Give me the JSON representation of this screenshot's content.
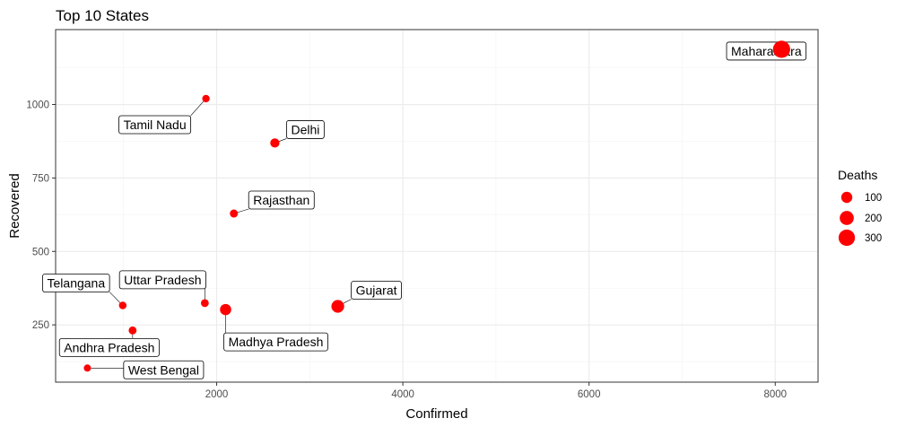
{
  "chart_data": {
    "type": "scatter",
    "title": "Top 10 States",
    "xlabel": "Confirmed",
    "ylabel": "Recovered",
    "xlim": [
      270,
      8460
    ],
    "ylim": [
      55,
      1255
    ],
    "x_ticks": [
      2000,
      4000,
      6000,
      8000
    ],
    "y_ticks": [
      250,
      500,
      750,
      1000
    ],
    "grid": true,
    "size_legend": {
      "title": "Deaths",
      "entries": [
        100,
        200,
        300
      ]
    },
    "colors": {
      "points": "#ff0000",
      "grid": "#ebebeb",
      "panel_border": "#333333"
    },
    "points": [
      {
        "label": "Maharashtra",
        "x": 8068,
        "y": 1188,
        "deaths": 342
      },
      {
        "label": "Tamil Nadu",
        "x": 1885,
        "y": 1020,
        "deaths": 24
      },
      {
        "label": "Delhi",
        "x": 2625,
        "y": 869,
        "deaths": 54
      },
      {
        "label": "Rajasthan",
        "x": 2185,
        "y": 629,
        "deaths": 33
      },
      {
        "label": "Gujarat",
        "x": 3301,
        "y": 313,
        "deaths": 151
      },
      {
        "label": "Uttar Pradesh",
        "x": 1873,
        "y": 324,
        "deaths": 30
      },
      {
        "label": "Madhya Pradesh",
        "x": 2096,
        "y": 302,
        "deaths": 103
      },
      {
        "label": "Telangana",
        "x": 991,
        "y": 316,
        "deaths": 26
      },
      {
        "label": "Andhra Pradesh",
        "x": 1097,
        "y": 231,
        "deaths": 31
      },
      {
        "label": "West Bengal",
        "x": 611,
        "y": 103,
        "deaths": 20
      }
    ]
  }
}
